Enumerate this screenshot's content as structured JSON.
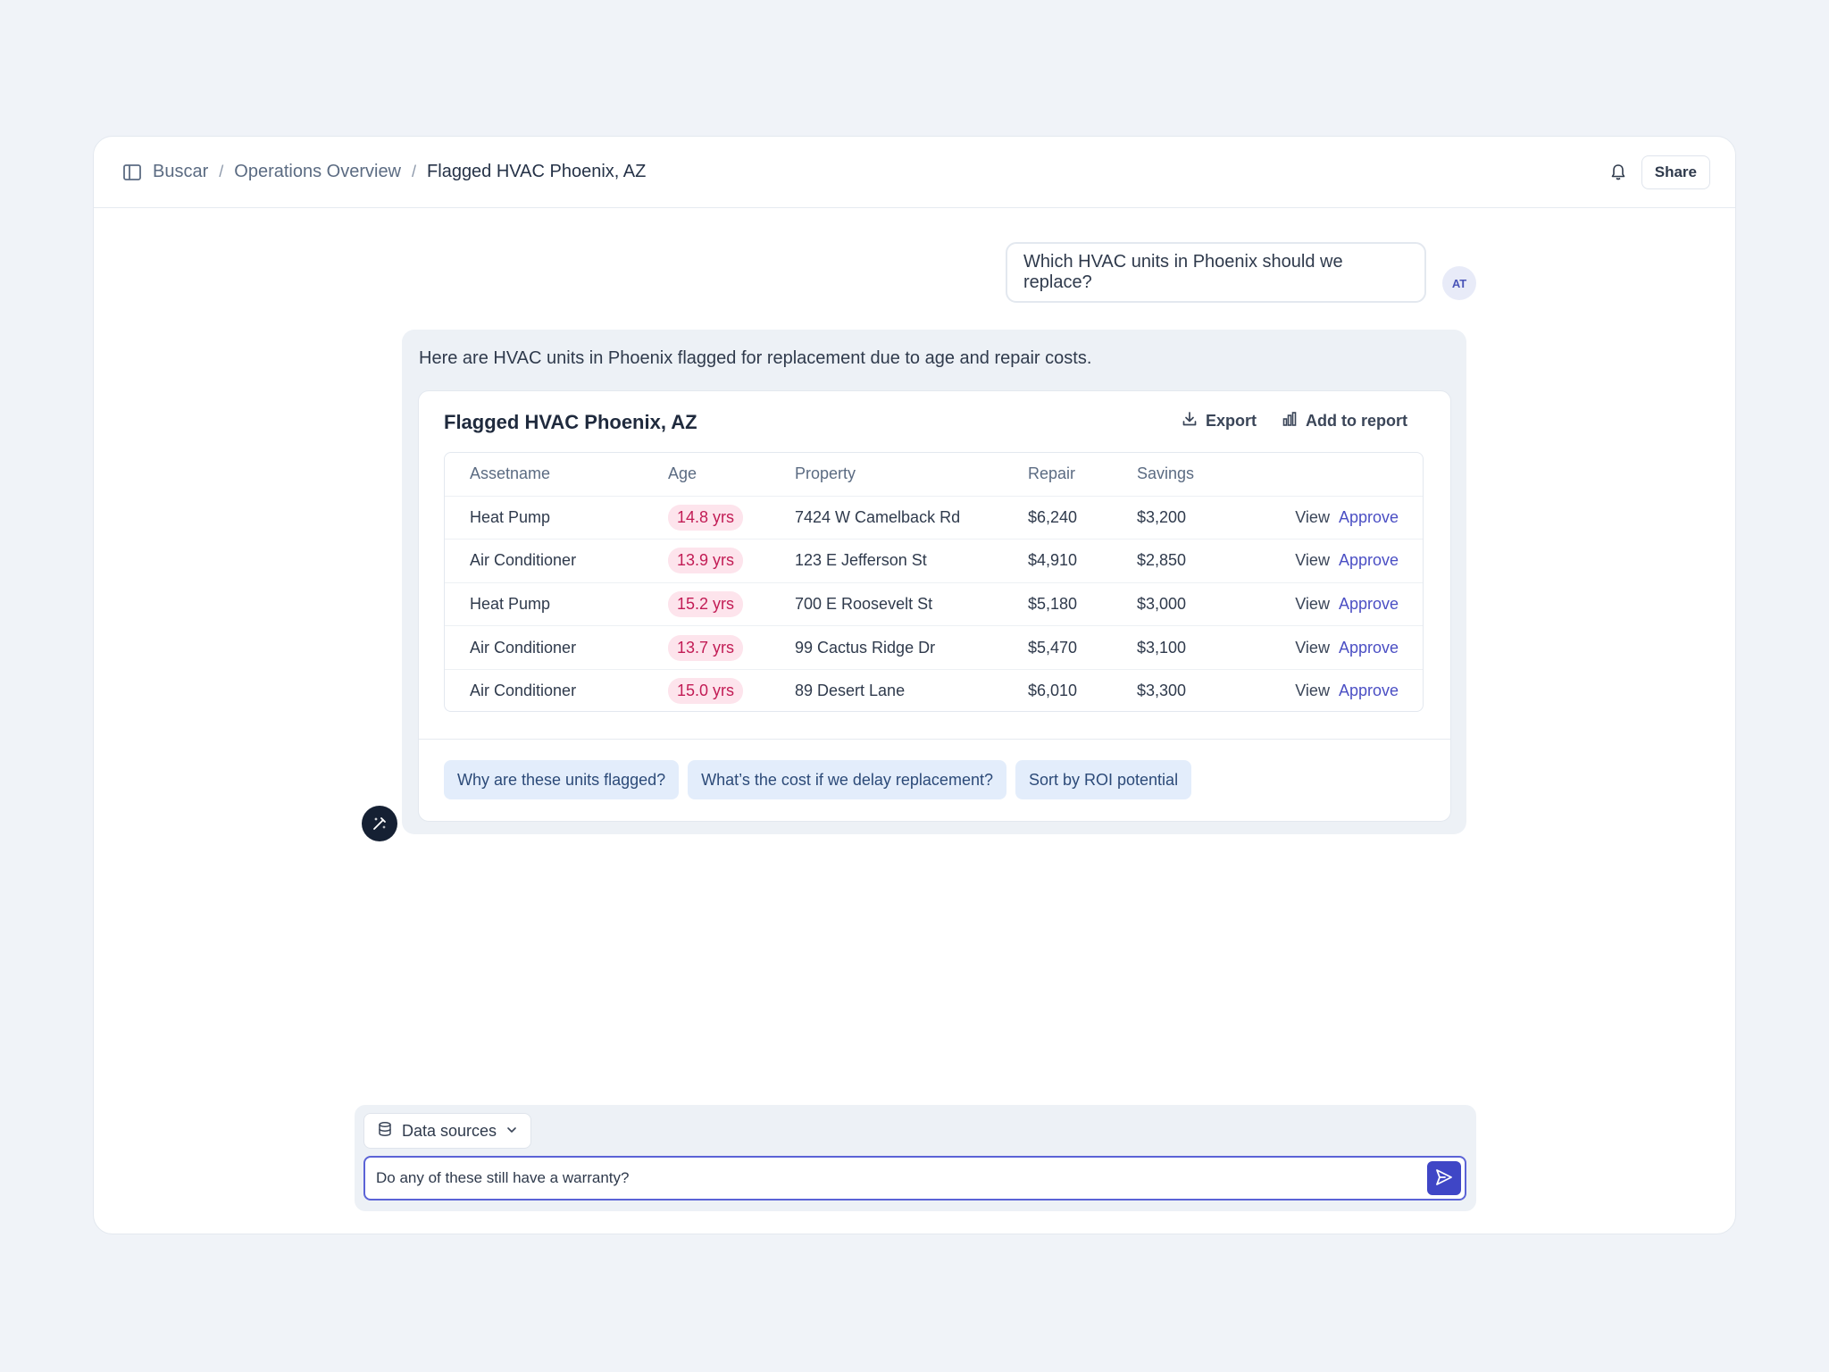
{
  "breadcrumb": [
    "Buscar",
    "Operations Overview",
    "Flagged HVAC Phoenix, AZ"
  ],
  "header": {
    "share_label": "Share"
  },
  "chat": {
    "user_message": "Which HVAC units in Phoenix should we replace?",
    "user_initials": "AT",
    "assistant_message": "Here are HVAC units in Phoenix flagged for replacement due to age and repair costs."
  },
  "card": {
    "title": "Flagged HVAC Phoenix, AZ",
    "export_label": "Export",
    "add_to_report_label": "Add to report",
    "columns": [
      "Assetname",
      "Age",
      "Property",
      "Repair",
      "Savings"
    ],
    "rows": [
      {
        "asset": "Heat Pump",
        "age": "14.8 yrs",
        "property": "7424 W Camelback Rd",
        "repair": "$6,240",
        "savings": "$3,200",
        "view": "View",
        "approve": "Approve"
      },
      {
        "asset": "Air Conditioner",
        "age": "13.9 yrs",
        "property": "123 E Jefferson St",
        "repair": "$4,910",
        "savings": "$2,850",
        "view": "View",
        "approve": "Approve"
      },
      {
        "asset": "Heat Pump",
        "age": "15.2 yrs",
        "property": "700 E Roosevelt St",
        "repair": "$5,180",
        "savings": "$3,000",
        "view": "View",
        "approve": "Approve"
      },
      {
        "asset": "Air Conditioner",
        "age": "13.7 yrs",
        "property": "99 Cactus Ridge Dr",
        "repair": "$5,470",
        "savings": "$3,100",
        "view": "View",
        "approve": "Approve"
      },
      {
        "asset": "Air Conditioner",
        "age": "15.0 yrs",
        "property": "89 Desert Lane",
        "repair": "$6,010",
        "savings": "$3,300",
        "view": "View",
        "approve": "Approve"
      }
    ],
    "suggestions": [
      "Why are these units flagged?",
      "What’s the cost if we delay replacement?",
      "Sort by ROI potential"
    ]
  },
  "composer": {
    "data_sources_label": "Data sources",
    "input_value": "Do any of these still have a warranty?"
  },
  "icons": {
    "sidebar_toggle": "sidebar-toggle-icon",
    "bell": "bell-icon",
    "export": "download-icon",
    "add_to_report": "bar-chart-icon",
    "assistant": "magic-wand-icon",
    "database": "database-icon",
    "chevron": "chevron-down-icon",
    "send": "send-icon"
  },
  "colors": {
    "accent": "#3f46c6",
    "age_badge_bg": "#fde4ec",
    "age_badge_text": "#c21c55",
    "chip_bg": "#e3edfb"
  }
}
